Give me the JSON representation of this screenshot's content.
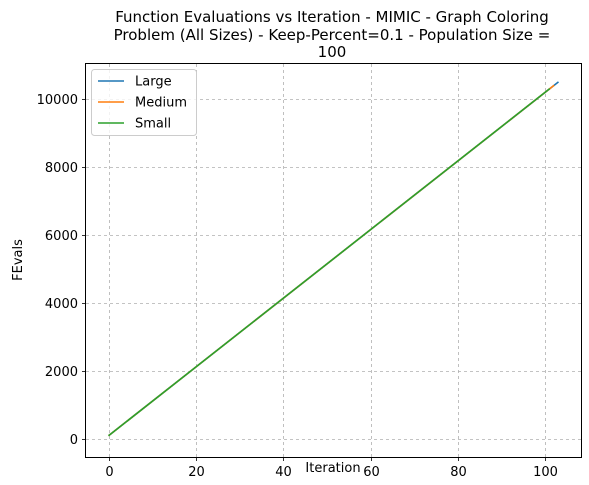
{
  "chart_data": {
    "type": "line",
    "title": "Function Evaluations vs Iteration - MIMIC - Graph Coloring Problem (All Sizes) - Keep-Percent=0.1 - Population Size = 100",
    "title_lines": [
      "Function Evaluations vs Iteration - MIMIC - Graph Coloring",
      "Problem (All Sizes) - Keep-Percent=0.1 - Population Size =",
      "100"
    ],
    "xlabel": "Iteration",
    "ylabel": "FEvals",
    "xlim": [
      -5.15,
      108.15
    ],
    "ylim": [
      -525,
      11025
    ],
    "xticks": [
      0,
      20,
      40,
      60,
      80,
      100
    ],
    "yticks": [
      0,
      2000,
      4000,
      6000,
      8000,
      10000
    ],
    "grid": true,
    "legend_position": "upper-left",
    "series": [
      {
        "name": "Large",
        "color": "#1f77b4",
        "x": [
          0,
          103
        ],
        "y": [
          100,
          10500
        ]
      },
      {
        "name": "Medium",
        "color": "#ff7f0e",
        "x": [
          0,
          102
        ],
        "y": [
          100,
          10400
        ]
      },
      {
        "name": "Small",
        "color": "#2ca02c",
        "x": [
          0,
          101
        ],
        "y": [
          100,
          10300
        ]
      }
    ]
  }
}
